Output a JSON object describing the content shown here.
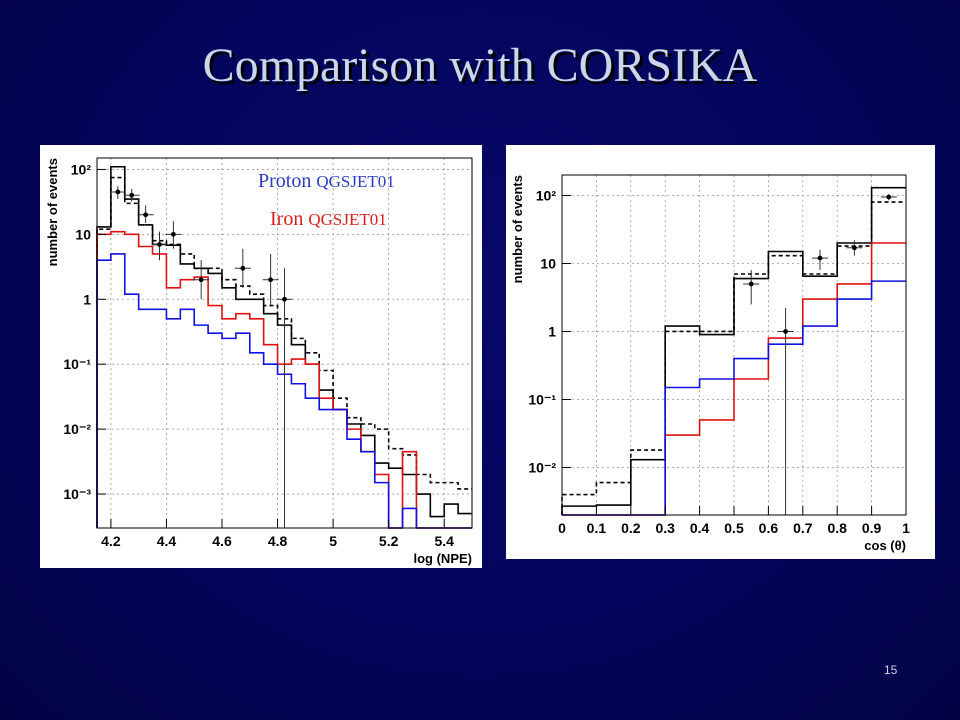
{
  "title": "Comparison with CORSIKA",
  "page_number": "15",
  "legend": {
    "proton_label": "Proton",
    "proton_model": "QGSJET01",
    "iron_label": "Iron",
    "iron_model": "QGSJET01"
  },
  "colors": {
    "background": "#04055c",
    "title": "#c9d6ec",
    "proton": "#1010e0",
    "iron": "#e01010",
    "total": "#000000"
  },
  "chart_data": [
    {
      "type": "line",
      "xlabel": "log (NPE)",
      "ylabel": "number of events",
      "xlim": [
        4.15,
        5.5
      ],
      "ylim": [
        0.0003,
        150
      ],
      "yscale": "log",
      "grid": true,
      "xticks": [
        "4.2",
        "4.4",
        "4.6",
        "4.8",
        "5",
        "5.2",
        "5.4"
      ],
      "yticks": [
        {
          "value": 100,
          "label": "10²"
        },
        {
          "value": 10,
          "label": "10"
        },
        {
          "value": 1,
          "label": "1"
        },
        {
          "value": 0.1,
          "label": "10⁻¹"
        },
        {
          "value": 0.01,
          "label": "10⁻²"
        },
        {
          "value": 0.001,
          "label": "10⁻³"
        }
      ],
      "bin_edges": [
        4.15,
        4.2,
        4.25,
        4.3,
        4.35,
        4.4,
        4.45,
        4.5,
        4.55,
        4.6,
        4.65,
        4.7,
        4.75,
        4.8,
        4.85,
        4.9,
        4.95,
        5.0,
        5.05,
        5.1,
        5.15,
        5.2,
        5.25,
        5.3,
        5.35,
        5.4,
        5.45,
        5.5
      ],
      "series": [
        {
          "style": "total-solid",
          "color": "#000000",
          "dash": false,
          "values": [
            13,
            110,
            35,
            14,
            7,
            6.8,
            3.5,
            3.0,
            2.5,
            1.5,
            1.0,
            1.0,
            0.6,
            0.4,
            0.2,
            0.1,
            0.04,
            0.02,
            0.012,
            0.008,
            0.003,
            0.0025,
            0.002,
            0.001,
            0.00045,
            0.0007,
            0.0005
          ]
        },
        {
          "style": "total-dashed",
          "color": "#000000",
          "dash": true,
          "values": [
            12,
            75,
            30,
            14,
            8,
            7,
            5,
            3.0,
            3.0,
            2.0,
            1.6,
            1.2,
            0.8,
            0.5,
            0.25,
            0.15,
            0.08,
            0.03,
            0.015,
            0.012,
            0.01,
            0.005,
            0.004,
            0.002,
            0.0015,
            0.0015,
            0.0012
          ]
        },
        {
          "style": "iron",
          "color": "#e01010",
          "dash": false,
          "values": [
            10,
            11,
            10,
            6.5,
            5.0,
            1.5,
            2.0,
            2.2,
            0.8,
            0.5,
            0.6,
            0.5,
            0.2,
            0.1,
            0.12,
            0.1,
            0.03,
            0.02,
            0.01,
            0.0045,
            0.002,
            0.0003,
            0.0045,
            0.0003,
            0.0003,
            0.0003,
            0.0003
          ]
        },
        {
          "style": "proton",
          "color": "#1010e0",
          "dash": false,
          "values": [
            4,
            5,
            1.2,
            0.7,
            0.7,
            0.5,
            0.7,
            0.4,
            0.3,
            0.25,
            0.3,
            0.15,
            0.1,
            0.07,
            0.05,
            0.03,
            0.02,
            0.02,
            0.007,
            0.0045,
            0.0015,
            0.0003,
            0.0006,
            0.0003,
            0.0003,
            0.0003,
            0.0003
          ]
        }
      ],
      "data_points": [
        {
          "x": 4.225,
          "y": 45,
          "ylo": 35,
          "yhi": 55
        },
        {
          "x": 4.275,
          "y": 40,
          "ylo": 32,
          "yhi": 50
        },
        {
          "x": 4.325,
          "y": 20,
          "ylo": 15,
          "yhi": 28
        },
        {
          "x": 4.375,
          "y": 7,
          "ylo": 4,
          "yhi": 11
        },
        {
          "x": 4.425,
          "y": 10,
          "ylo": 6,
          "yhi": 16
        },
        {
          "x": 4.525,
          "y": 2,
          "ylo": 1,
          "yhi": 4
        },
        {
          "x": 4.675,
          "y": 3,
          "ylo": 1.5,
          "yhi": 6
        },
        {
          "x": 4.775,
          "y": 2,
          "ylo": 0.8,
          "yhi": 5
        },
        {
          "x": 4.825,
          "y": 1,
          "ylo": 0.0003,
          "yhi": 3
        }
      ]
    },
    {
      "type": "line",
      "xlabel": "cos (θ)",
      "ylabel": "number of events",
      "xlim": [
        0,
        1
      ],
      "ylim": [
        0.002,
        200
      ],
      "yscale": "log",
      "grid": true,
      "xticks": [
        "0",
        "0.1",
        "0.2",
        "0.3",
        "0.4",
        "0.5",
        "0.6",
        "0.7",
        "0.8",
        "0.9",
        "1"
      ],
      "yticks": [
        {
          "value": 100,
          "label": "10²"
        },
        {
          "value": 10,
          "label": "10"
        },
        {
          "value": 1,
          "label": "1"
        },
        {
          "value": 0.1,
          "label": "10⁻¹"
        },
        {
          "value": 0.01,
          "label": "10⁻²"
        }
      ],
      "bin_edges": [
        0,
        0.1,
        0.2,
        0.3,
        0.4,
        0.5,
        0.6,
        0.7,
        0.8,
        0.9,
        1.0
      ],
      "series": [
        {
          "style": "total-solid",
          "color": "#000000",
          "dash": false,
          "values": [
            0.0027,
            0.0028,
            0.013,
            1.2,
            0.9,
            6.0,
            15,
            6.5,
            20,
            130
          ]
        },
        {
          "style": "total-dashed",
          "color": "#000000",
          "dash": true,
          "values": [
            0.004,
            0.006,
            0.018,
            1.0,
            1.0,
            7.0,
            13,
            7.0,
            18,
            80
          ]
        },
        {
          "style": "iron",
          "color": "#e01010",
          "dash": false,
          "values": [
            0.002,
            0.002,
            0.002,
            0.03,
            0.05,
            0.2,
            0.8,
            3.0,
            5.0,
            20
          ]
        },
        {
          "style": "proton",
          "color": "#1010e0",
          "dash": false,
          "values": [
            0.002,
            0.002,
            0.002,
            0.15,
            0.2,
            0.4,
            0.65,
            1.2,
            3.0,
            5.5
          ]
        }
      ],
      "data_points": [
        {
          "x": 0.55,
          "y": 5,
          "ylo": 2.5,
          "yhi": 8
        },
        {
          "x": 0.65,
          "y": 1,
          "ylo": 0.002,
          "yhi": 2.2
        },
        {
          "x": 0.75,
          "y": 12,
          "ylo": 8,
          "yhi": 16
        },
        {
          "x": 0.85,
          "y": 17,
          "ylo": 13,
          "yhi": 22
        },
        {
          "x": 0.95,
          "y": 95,
          "ylo": 85,
          "yhi": 105
        }
      ]
    }
  ]
}
